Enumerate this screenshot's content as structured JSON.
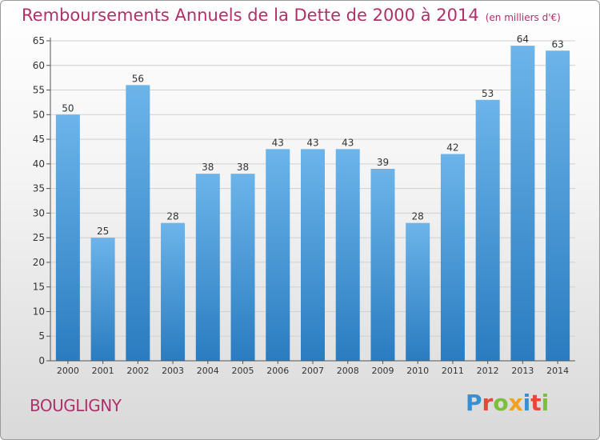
{
  "chart_data": {
    "type": "bar",
    "title": "Remboursements Annuels de la Dette de 2000 à 2014",
    "subtitle": "(en milliers d'€)",
    "categories": [
      "2000",
      "2001",
      "2002",
      "2003",
      "2004",
      "2005",
      "2006",
      "2007",
      "2008",
      "2009",
      "2010",
      "2011",
      "2012",
      "2013",
      "2014"
    ],
    "values": [
      50,
      25,
      56,
      28,
      38,
      38,
      43,
      43,
      43,
      39,
      28,
      42,
      53,
      64,
      63
    ],
    "xlabel": "",
    "ylabel": "",
    "ylim": [
      0,
      65
    ],
    "yticks": [
      0,
      5,
      10,
      15,
      20,
      25,
      30,
      35,
      40,
      45,
      50,
      55,
      60,
      65
    ],
    "grid": true,
    "bar_color_top": "#6cb4ea",
    "bar_color_bottom": "#2a7cc0"
  },
  "footer": {
    "town": "BOUGLIGNY",
    "logo": "Proxiti"
  },
  "colors": {
    "title": "#b0306a",
    "axis": "#333333"
  }
}
